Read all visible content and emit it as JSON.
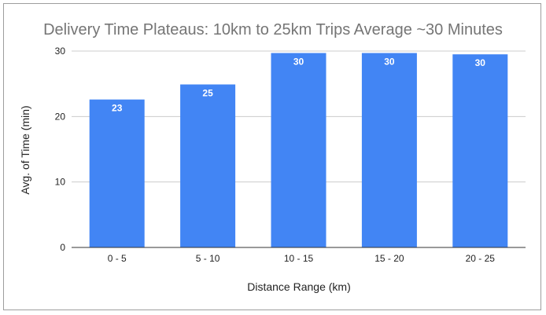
{
  "chart_data": {
    "type": "bar",
    "title": "Delivery Time Plateaus: 10km to 25km Trips Average ~30 Minutes",
    "xlabel": "Distance Range (km)",
    "ylabel": "Avg. of Time (min)",
    "categories": [
      "0 - 5",
      "5 - 10",
      "10 - 15",
      "15 - 20",
      "20 - 25"
    ],
    "series": [
      {
        "values": [
          22.6,
          24.9,
          29.7,
          29.7,
          29.5
        ]
      }
    ],
    "data_labels": [
      "23",
      "25",
      "30",
      "30",
      "30"
    ],
    "ylim": [
      0,
      30
    ],
    "yticks": [
      0,
      10,
      20,
      30
    ],
    "grid": true,
    "legend": "none",
    "bar_color": "#4285f4"
  }
}
